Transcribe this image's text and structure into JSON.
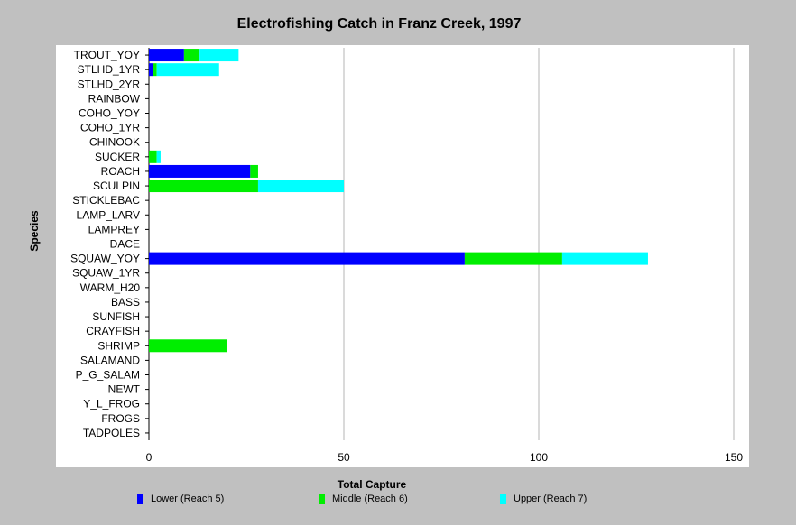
{
  "chart_data": {
    "type": "bar",
    "orientation": "horizontal",
    "stacked": true,
    "title": "Electrofishing Catch in Franz Creek, 1997",
    "xlabel": "Total Capture",
    "ylabel": "Species",
    "xlim": [
      0,
      150
    ],
    "xticks": [
      0,
      50,
      100,
      150
    ],
    "grid": "vertical",
    "legend_position": "bottom",
    "categories": [
      "TROUT_YOY",
      "STLHD_1YR",
      "STLHD_2YR",
      "RAINBOW",
      "COHO_YOY",
      "COHO_1YR",
      "CHINOOK",
      "SUCKER",
      "ROACH",
      "SCULPIN",
      "STICKLEBAC",
      "LAMP_LARV",
      "LAMPREY",
      "DACE",
      "SQUAW_YOY",
      "SQUAW_1YR",
      "WARM_H20",
      "BASS",
      "SUNFISH",
      "CRAYFISH",
      "SHRIMP",
      "SALAMAND",
      "P_G_SALAM",
      "NEWT",
      "Y_L_FROG",
      "FROGS",
      "TADPOLES"
    ],
    "series": [
      {
        "name": "Lower (Reach 5)",
        "color": "#0000ff",
        "values": [
          9,
          1,
          0,
          0,
          0,
          0,
          0,
          0,
          26,
          0,
          0,
          0,
          0,
          0,
          81,
          0,
          0,
          0,
          0,
          0,
          0,
          0,
          0,
          0,
          0,
          0,
          0
        ]
      },
      {
        "name": "Middle (Reach 6)",
        "color": "#00ee00",
        "values": [
          4,
          1,
          0,
          0,
          0,
          0,
          0,
          2,
          2,
          28,
          0,
          0,
          0,
          0,
          25,
          0,
          0,
          0,
          0,
          0,
          20,
          0,
          0,
          0,
          0,
          0,
          0
        ]
      },
      {
        "name": "Upper (Reach 7)",
        "color": "#00ffff",
        "values": [
          10,
          16,
          0,
          0,
          0,
          0,
          0,
          1,
          0,
          22,
          0,
          0,
          0,
          0,
          22,
          0,
          0,
          0,
          0,
          0,
          0,
          0,
          0,
          0,
          0,
          0,
          0
        ]
      }
    ]
  }
}
